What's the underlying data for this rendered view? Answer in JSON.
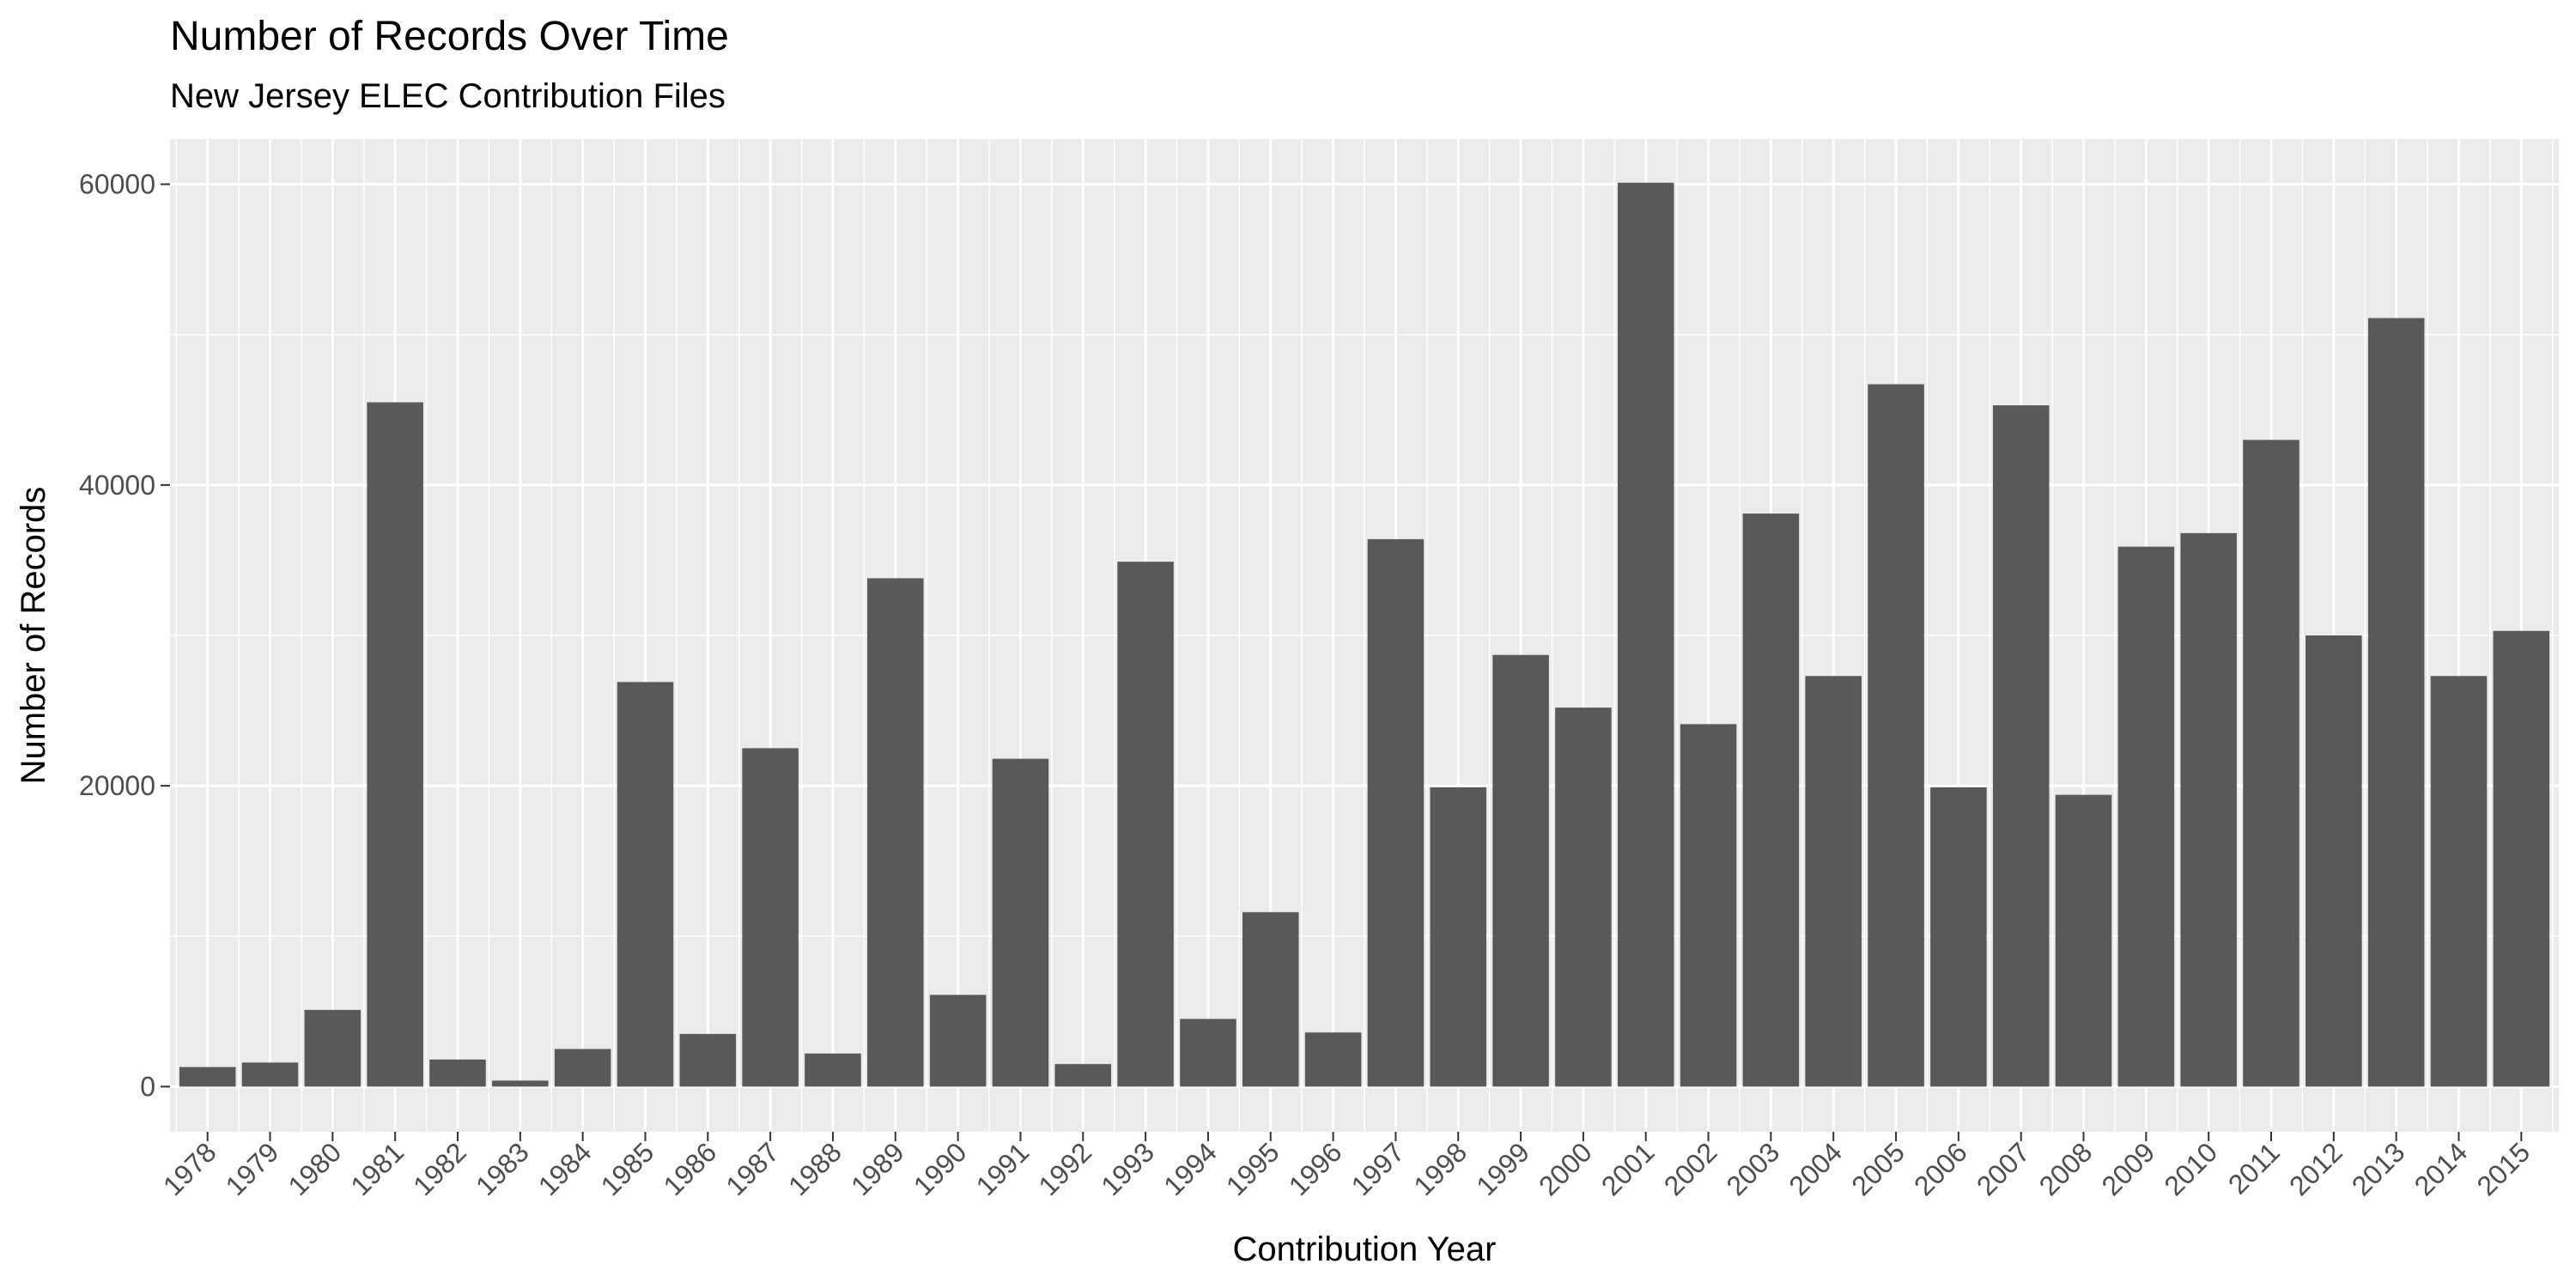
{
  "chart_data": {
    "type": "bar",
    "title": "Number of Records Over Time",
    "subtitle": "New Jersey ELEC Contribution Files",
    "xlabel": "Contribution Year",
    "ylabel": "Number of Records",
    "categories": [
      "1978",
      "1979",
      "1980",
      "1981",
      "1982",
      "1983",
      "1984",
      "1985",
      "1986",
      "1987",
      "1988",
      "1989",
      "1990",
      "1991",
      "1992",
      "1993",
      "1994",
      "1995",
      "1996",
      "1997",
      "1998",
      "1999",
      "2000",
      "2001",
      "2002",
      "2003",
      "2004",
      "2005",
      "2006",
      "2007",
      "2008",
      "2009",
      "2010",
      "2011",
      "2012",
      "2013",
      "2014",
      "2015"
    ],
    "values": [
      1300,
      1600,
      5100,
      45500,
      1800,
      400,
      2500,
      26900,
      3500,
      22500,
      2200,
      33800,
      6100,
      21800,
      1500,
      34900,
      4500,
      11600,
      3600,
      36400,
      19900,
      28700,
      25200,
      60100,
      24100,
      38100,
      27300,
      46700,
      19900,
      45300,
      19400,
      35900,
      36800,
      43000,
      30000,
      51100,
      27300,
      30300
    ],
    "yticks": [
      0,
      20000,
      40000,
      60000
    ],
    "ytick_labels": [
      "0",
      "20000",
      "40000",
      "60000"
    ],
    "ylim": [
      -3000,
      63000
    ],
    "grid": true,
    "colors": {
      "bar": "#595959",
      "panel": "#ebebeb",
      "grid": "#ffffff"
    }
  }
}
